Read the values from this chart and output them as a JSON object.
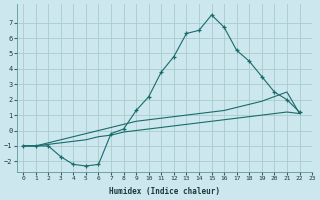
{
  "xlabel": "Humidex (Indice chaleur)",
  "bg_color": "#cce8ee",
  "grid_color": "#aacccc",
  "line_color": "#1a6b6b",
  "xlim": [
    -0.5,
    23
  ],
  "ylim": [
    -2.7,
    8.2
  ],
  "xticks": [
    0,
    1,
    2,
    3,
    4,
    5,
    6,
    7,
    8,
    9,
    10,
    11,
    12,
    13,
    14,
    15,
    16,
    17,
    18,
    19,
    20,
    21,
    22,
    23
  ],
  "yticks": [
    -2,
    -1,
    0,
    1,
    2,
    3,
    4,
    5,
    6,
    7
  ],
  "curve1_x": [
    0,
    1,
    2,
    3,
    4,
    5,
    6,
    7,
    8,
    9,
    10,
    11,
    12,
    13,
    14,
    15,
    16,
    17,
    18,
    19,
    20,
    21,
    22
  ],
  "curve1_y": [
    -1,
    -1,
    -1,
    -1.7,
    -2.2,
    -2.3,
    -2.2,
    -0.2,
    0.1,
    1.3,
    2.2,
    3.8,
    4.8,
    6.3,
    6.5,
    7.5,
    6.7,
    5.2,
    4.5,
    3.5,
    2.5,
    2.0,
    1.2
  ],
  "curve2_x": [
    0,
    1,
    2,
    3,
    4,
    5,
    6,
    7,
    8,
    9,
    10,
    11,
    12,
    13,
    14,
    15,
    16,
    17,
    18,
    19,
    20,
    21,
    22
  ],
  "curve2_y": [
    -1.0,
    -1.0,
    -0.9,
    -0.8,
    -0.7,
    -0.6,
    -0.4,
    -0.3,
    -0.1,
    0.0,
    0.1,
    0.2,
    0.3,
    0.4,
    0.5,
    0.6,
    0.7,
    0.8,
    0.9,
    1.0,
    1.1,
    1.2,
    1.1
  ],
  "curve3_x": [
    0,
    1,
    2,
    3,
    4,
    5,
    6,
    7,
    8,
    9,
    10,
    11,
    12,
    13,
    14,
    15,
    16,
    17,
    18,
    19,
    20,
    21,
    22
  ],
  "curve3_y": [
    -1.0,
    -1.0,
    -0.8,
    -0.6,
    -0.4,
    -0.2,
    0.0,
    0.2,
    0.4,
    0.6,
    0.7,
    0.8,
    0.9,
    1.0,
    1.1,
    1.2,
    1.3,
    1.5,
    1.7,
    1.9,
    2.2,
    2.5,
    1.1
  ]
}
